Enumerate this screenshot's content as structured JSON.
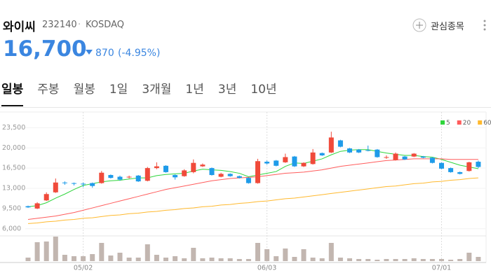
{
  "header": {
    "name": "와이씨",
    "code": "232140",
    "separator": "·",
    "market": "KOSDAQ",
    "price": "16,700",
    "change": "870",
    "change_pct": "(-4.95%)",
    "watch": "관심종목"
  },
  "tabs": [
    "일봉",
    "주봉",
    "월봉",
    "1일",
    "3개월",
    "1년",
    "3년",
    "10년"
  ],
  "chart_data": {
    "type": "candlestick",
    "categories": [
      null,
      null,
      null,
      null,
      null,
      null,
      "05/02",
      null,
      null,
      null,
      null,
      null,
      null,
      null,
      null,
      null,
      null,
      null,
      null,
      null,
      null,
      null,
      null,
      null,
      null,
      null,
      "06/03",
      null,
      null,
      null,
      null,
      null,
      null,
      null,
      null,
      null,
      null,
      null,
      null,
      null,
      null,
      null,
      null,
      null,
      null,
      "07/01",
      null,
      null,
      null,
      null
    ],
    "open": [
      9900,
      9500,
      10900,
      12300,
      14000,
      13900,
      13800,
      13900,
      13900,
      15300,
      15000,
      14900,
      15200,
      14300,
      16500,
      16900,
      15300,
      15100,
      15800,
      16800,
      16500,
      15000,
      15500,
      15100,
      14800,
      13900,
      17600,
      17800,
      17500,
      18500,
      16800,
      17200,
      19100,
      19200,
      21300,
      19900,
      19700,
      19600,
      19700,
      18300,
      17900,
      18500,
      18500,
      18500,
      18300,
      17400,
      16500,
      15800,
      16000,
      17600
    ],
    "high": [
      10000,
      10600,
      12300,
      14700,
      14200,
      14000,
      14000,
      14000,
      16000,
      15400,
      15200,
      15200,
      15300,
      16700,
      17500,
      17000,
      15400,
      16300,
      18000,
      17300,
      16600,
      15700,
      15600,
      15200,
      14900,
      18100,
      17800,
      17900,
      19000,
      18600,
      17500,
      19800,
      19200,
      22800,
      21400,
      20000,
      19800,
      20400,
      19800,
      18700,
      19200,
      18600,
      19100,
      18600,
      18400,
      17500,
      16600,
      15900,
      17600,
      17800
    ],
    "low": [
      9600,
      9400,
      10800,
      12200,
      13600,
      13500,
      13200,
      13100,
      13800,
      14700,
      14300,
      14700,
      14100,
      14200,
      16300,
      15700,
      14500,
      15000,
      15600,
      16700,
      15200,
      14900,
      15000,
      14700,
      13800,
      13800,
      17100,
      16800,
      17400,
      16700,
      16700,
      17100,
      18600,
      19100,
      20100,
      19100,
      19100,
      19400,
      18300,
      18100,
      17800,
      17900,
      18400,
      18200,
      17300,
      16300,
      15700,
      15400,
      15900,
      16500
    ],
    "close": [
      9700,
      10400,
      12000,
      14000,
      13900,
      13800,
      13700,
      13400,
      15700,
      14800,
      14500,
      15000,
      14200,
      16500,
      16800,
      15800,
      14900,
      16100,
      17400,
      17100,
      15300,
      15500,
      15100,
      14800,
      13900,
      17700,
      17300,
      16900,
      18400,
      16800,
      17400,
      19200,
      18700,
      21800,
      20200,
      19200,
      19200,
      19500,
      18400,
      18400,
      19000,
      18000,
      19000,
      18300,
      17400,
      16400,
      15800,
      15500,
      17500,
      16700
    ],
    "up_color": "#f04a3a",
    "down_color": "#1e9be9",
    "series": [
      {
        "name": "5",
        "color": "#2fd53c",
        "values": [
          9800,
          10000,
          10500,
          11300,
          12000,
          12800,
          13500,
          13800,
          14100,
          14300,
          14400,
          14600,
          14800,
          14800,
          15200,
          15400,
          15500,
          15600,
          16000,
          16300,
          16200,
          16100,
          15900,
          15600,
          15000,
          15300,
          15600,
          15900,
          16800,
          17400,
          17300,
          17700,
          18100,
          18800,
          19400,
          19600,
          19700,
          19700,
          19400,
          19100,
          18900,
          18700,
          18700,
          18500,
          18400,
          18000,
          17500,
          17000,
          16700,
          16400
        ]
      },
      {
        "name": "20",
        "color": "#ff5c5c",
        "values": [
          7600,
          7800,
          8000,
          8200,
          8500,
          8800,
          9200,
          9600,
          10000,
          10400,
          10800,
          11200,
          11600,
          12000,
          12400,
          12800,
          13100,
          13400,
          13700,
          14000,
          14300,
          14500,
          14700,
          14800,
          14900,
          15000,
          15200,
          15400,
          15600,
          15700,
          15800,
          16000,
          16200,
          16500,
          16800,
          17000,
          17200,
          17400,
          17600,
          17800,
          17900,
          18000,
          18100,
          18100,
          18100,
          18100,
          18000,
          18000,
          18000,
          18000
        ]
      },
      {
        "name": "60",
        "color": "#ffb92e",
        "values": [
          6900,
          7000,
          7200,
          7300,
          7500,
          7600,
          7800,
          7900,
          8100,
          8300,
          8400,
          8600,
          8700,
          8900,
          9000,
          9200,
          9300,
          9500,
          9600,
          9800,
          9900,
          10100,
          10200,
          10400,
          10500,
          10700,
          10800,
          11000,
          11200,
          11300,
          11500,
          11700,
          11900,
          12100,
          12300,
          12500,
          12700,
          12900,
          13100,
          13300,
          13400,
          13600,
          13800,
          13900,
          14100,
          14200,
          14400,
          14500,
          14700,
          14800
        ]
      }
    ],
    "volume": [
      5,
      27,
      28,
      35,
      9,
      7,
      7,
      10,
      26,
      8,
      12,
      5,
      5,
      24,
      9,
      5,
      7,
      4,
      19,
      4,
      5,
      4,
      4,
      3,
      3,
      26,
      17,
      7,
      18,
      6,
      17,
      5,
      4,
      26,
      5,
      4,
      3,
      3,
      2,
      3,
      3,
      3,
      4,
      3,
      3,
      3,
      2,
      3,
      12,
      6
    ],
    "volume_color": "#c2b6b0",
    "ylim": [
      5000,
      25000
    ],
    "yticks": [
      {
        "value": 6000,
        "label": "6,000"
      },
      {
        "value": 9500,
        "label": "9,500"
      },
      {
        "value": 13000,
        "label": "13,000"
      },
      {
        "value": 16500,
        "label": "16,500"
      },
      {
        "value": 20000,
        "label": "20,000"
      },
      {
        "value": 23500,
        "label": "23,500"
      }
    ],
    "grid": true
  }
}
